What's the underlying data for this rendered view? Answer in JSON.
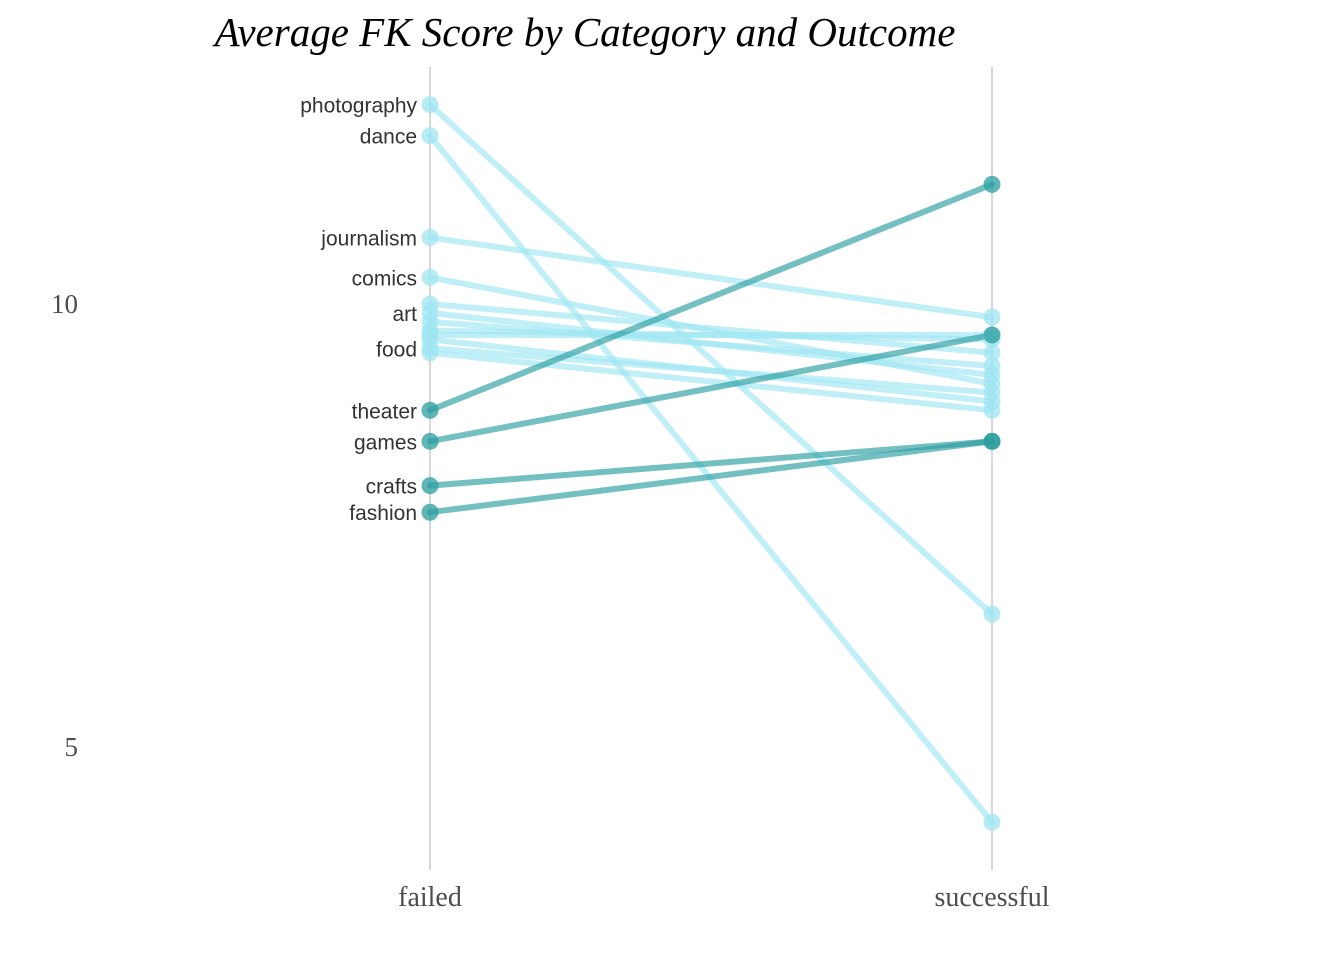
{
  "chart_data": {
    "type": "slope",
    "title": "Average FK Score by Category and Outcome",
    "x": [
      "failed",
      "successful"
    ],
    "y_ticks": [
      5,
      10
    ],
    "ylim": [
      3.6,
      12.6
    ],
    "grid": false,
    "colors": {
      "increase": "#2a9d9f",
      "decrease": "#9fe6f2"
    },
    "series": [
      {
        "name": "photography",
        "values": [
          12.25,
          6.5
        ],
        "trend": "down"
      },
      {
        "name": "dance",
        "values": [
          11.9,
          4.15
        ],
        "trend": "down"
      },
      {
        "name": "journalism",
        "values": [
          10.75,
          9.85
        ],
        "trend": "down"
      },
      {
        "name": "comics",
        "values": [
          10.3,
          9.1
        ],
        "trend": "down"
      },
      {
        "name": "art",
        "values": [
          9.9,
          9.2
        ],
        "trend": "down"
      },
      {
        "name": "food",
        "values": [
          9.5,
          9.0
        ],
        "trend": "down"
      },
      {
        "name": "theater",
        "values": [
          8.8,
          11.35
        ],
        "trend": "up"
      },
      {
        "name": "games",
        "values": [
          8.45,
          9.65
        ],
        "trend": "up"
      },
      {
        "name": "crafts",
        "values": [
          7.95,
          8.45
        ],
        "trend": "up"
      },
      {
        "name": "fashion",
        "values": [
          7.65,
          8.45
        ],
        "trend": "up"
      },
      {
        "name": "",
        "values": [
          10.0,
          9.45
        ],
        "trend": "down"
      },
      {
        "name": "",
        "values": [
          9.8,
          9.3
        ],
        "trend": "down"
      },
      {
        "name": "",
        "values": [
          9.7,
          9.6
        ],
        "trend": "down"
      },
      {
        "name": "",
        "values": [
          9.65,
          9.65
        ],
        "trend": "down"
      },
      {
        "name": "",
        "values": [
          9.6,
          8.9
        ],
        "trend": "down"
      },
      {
        "name": "",
        "values": [
          9.45,
          8.8
        ],
        "trend": "down"
      }
    ]
  }
}
